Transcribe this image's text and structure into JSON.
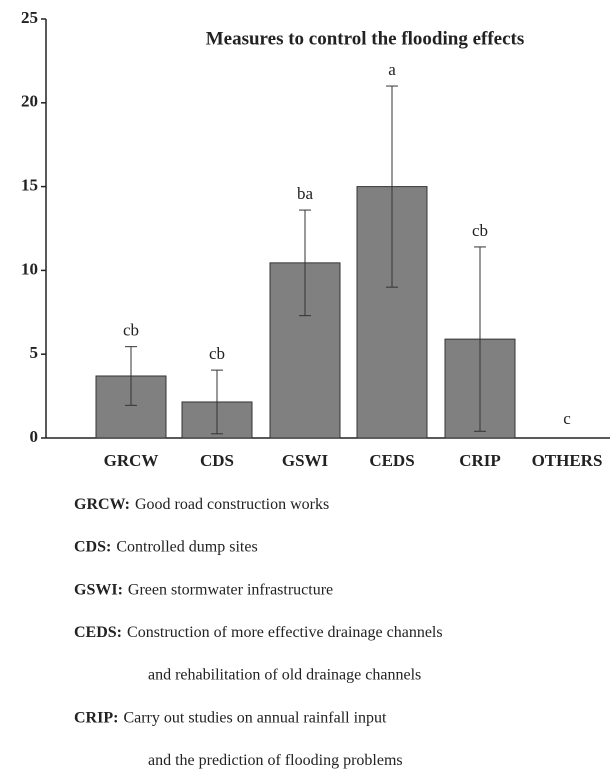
{
  "chart_data": {
    "type": "bar",
    "title": "Measures to control the flooding effects",
    "categories": [
      "GRCW",
      "CDS",
      "GSWI",
      "CEDS",
      "CRIP",
      "OTHERS"
    ],
    "values": [
      3.7,
      2.15,
      10.45,
      15,
      5.9,
      0
    ],
    "errors": [
      1.75,
      1.9,
      3.15,
      6,
      5.5,
      0
    ],
    "labels": [
      "cb",
      "cb",
      "ba",
      "a",
      "cb",
      "c"
    ],
    "color": "#808080",
    "ylim": [
      0,
      25
    ],
    "yticks": [
      0,
      5,
      10,
      15,
      20,
      25
    ]
  },
  "notes": [
    {
      "abbr": "GRCW:",
      "text": "Good road construction works"
    },
    {
      "abbr": "CDS:",
      "text": "Controlled dump sites"
    },
    {
      "abbr": "GSWI:",
      "text": "Green stormwater infrastructure"
    },
    {
      "abbr": "CEDS:",
      "text": "Construction of more effective drainage channels",
      "cont": "and rehabilitation of old drainage channels"
    },
    {
      "abbr": "CRIP:",
      "text": "Carry out studies on annual rainfall input",
      "cont": "and the prediction of flooding problems"
    }
  ]
}
